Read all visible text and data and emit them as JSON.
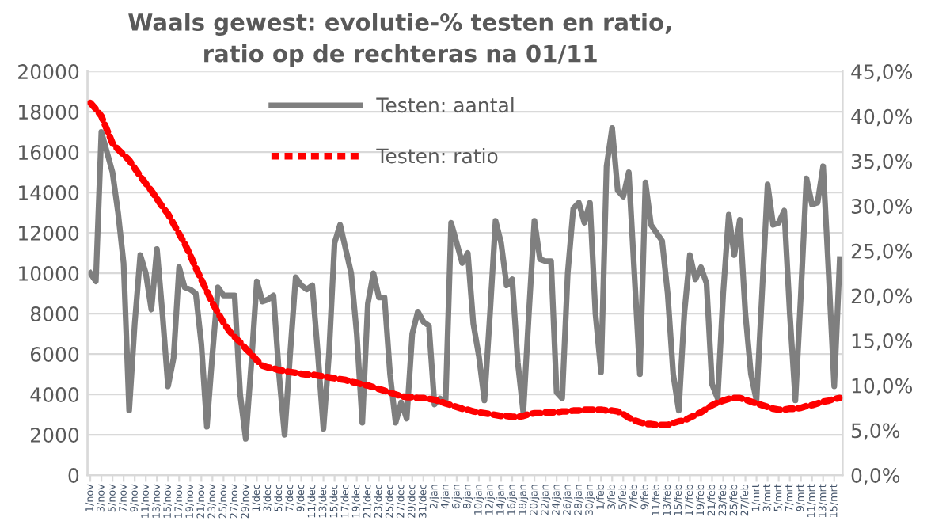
{
  "chart_data": {
    "type": "line",
    "title": "Waals gewest: evolutie-% testen en ratio,\nratio op de rechteras na 01/11",
    "categories": [
      "1/nov",
      null,
      "3/nov",
      null,
      "5/nov",
      null,
      "7/nov",
      null,
      "9/nov",
      null,
      "11/nov",
      null,
      "13/nov",
      null,
      "15/nov",
      null,
      "17/nov",
      null,
      "19/nov",
      null,
      "21/nov",
      null,
      "23/nov",
      null,
      "25/nov",
      null,
      "27/nov",
      null,
      "29/nov",
      null,
      "1/dec",
      null,
      "3/dec",
      null,
      "5/dec",
      null,
      "7/dec",
      null,
      "9/dec",
      null,
      "11/dec",
      null,
      "13/dec",
      null,
      "15/dec",
      null,
      "17/dec",
      null,
      "19/dec",
      null,
      "21/dec",
      null,
      "23/dec",
      null,
      "25/dec",
      null,
      "27/dec",
      null,
      "29/dec",
      null,
      "31/dec",
      null,
      "2/jan",
      null,
      "4/jan",
      null,
      "6/jan",
      null,
      "8/jan",
      null,
      "10/jan",
      null,
      "12/jan",
      null,
      "14/jan",
      null,
      "16/jan",
      null,
      "18/jan",
      null,
      "20/jan",
      null,
      "22/jan",
      null,
      "24/jan",
      null,
      "26/jan",
      null,
      "28/jan",
      null,
      "30/jan",
      null,
      "1/feb",
      null,
      "3/feb",
      null,
      "5/feb",
      null,
      "7/feb",
      null,
      "9/feb",
      null,
      "11/feb",
      null,
      "13/feb",
      null,
      "15/feb",
      null,
      "17/feb",
      null,
      "19/feb",
      null,
      "21/feb",
      null,
      "23/feb",
      null,
      "25/feb",
      null,
      "27/feb",
      null,
      "1/mrt",
      null,
      "3/mrt",
      null,
      "5/mrt",
      null,
      "7/mrt",
      null,
      "9/mrt",
      null,
      "11/mrt",
      null,
      "13/mrt",
      null,
      "15/mrt",
      null
    ],
    "series": [
      {
        "name": "Testen: aantal",
        "color": "#7f7f7f",
        "line_style": "solid",
        "values": [
          10000,
          9600,
          17000,
          16000,
          15000,
          13000,
          10500,
          3200,
          7500,
          10900,
          10000,
          8200,
          11200,
          8000,
          4400,
          5800,
          10300,
          9300,
          9200,
          9000,
          6500,
          2400,
          6000,
          9300,
          8900,
          8900,
          8900,
          4000,
          1800,
          5500,
          9600,
          8600,
          8700,
          8900,
          5000,
          2000,
          6000,
          9800,
          9400,
          9200,
          9400,
          6000,
          2300,
          6000,
          11500,
          12400,
          11200,
          10000,
          7000,
          2600,
          8500,
          10000,
          8800,
          8800,
          5000,
          2600,
          3600,
          2800,
          7000,
          8100,
          7600,
          7400,
          3500,
          3800,
          3600,
          12500,
          11500,
          10500,
          11000,
          7500,
          5900,
          3700,
          8000,
          12600,
          11500,
          9400,
          9700,
          5600,
          3100,
          8000,
          12600,
          10700,
          10600,
          10600,
          4100,
          3800,
          10000,
          13200,
          13500,
          12500,
          13500,
          8000,
          5100,
          15300,
          17200,
          14100,
          13800,
          15000,
          10000,
          5000,
          14500,
          12400,
          12000,
          11600,
          9000,
          5000,
          3200,
          8000,
          10900,
          9700,
          10300,
          9500,
          4500,
          3800,
          9000,
          12900,
          10900,
          12650,
          8000,
          5000,
          3700,
          9000,
          14400,
          12400,
          12500,
          13100,
          8000,
          3700,
          9000,
          14700,
          13400,
          13500,
          15300,
          10000,
          4400,
          10700
        ]
      },
      {
        "name": "Testen: ratio",
        "color": "#ff0000",
        "line_style": "dashed",
        "axis": "y2",
        "values": [
          41.5,
          40.8,
          40.0,
          38.5,
          37.0,
          36.3,
          35.7,
          35.1,
          34.2,
          33.3,
          32.5,
          31.7,
          30.8,
          29.9,
          29.1,
          28.0,
          26.9,
          25.8,
          24.5,
          23.1,
          21.8,
          20.5,
          19.2,
          18.1,
          17.0,
          16.1,
          15.4,
          14.8,
          14.1,
          13.5,
          12.8,
          12.2,
          12.0,
          11.9,
          11.7,
          11.6,
          11.5,
          11.4,
          11.3,
          11.2,
          11.2,
          11.1,
          11.0,
          10.9,
          10.8,
          10.7,
          10.6,
          10.4,
          10.3,
          10.1,
          10.0,
          9.8,
          9.6,
          9.4,
          9.2,
          9.0,
          8.8,
          8.7,
          8.7,
          8.6,
          8.6,
          8.5,
          8.4,
          8.2,
          8.0,
          7.8,
          7.6,
          7.4,
          7.3,
          7.1,
          7.0,
          6.9,
          6.8,
          6.7,
          6.6,
          6.6,
          6.5,
          6.5,
          6.6,
          6.8,
          6.9,
          6.9,
          7.0,
          7.0,
          7.0,
          7.1,
          7.1,
          7.2,
          7.2,
          7.3,
          7.3,
          7.3,
          7.3,
          7.2,
          7.2,
          7.1,
          6.8,
          6.4,
          6.1,
          5.9,
          5.7,
          5.7,
          5.6,
          5.6,
          5.6,
          5.8,
          6.0,
          6.1,
          6.4,
          6.7,
          7.0,
          7.4,
          7.8,
          8.1,
          8.3,
          8.5,
          8.6,
          8.6,
          8.4,
          8.2,
          8.0,
          7.8,
          7.6,
          7.4,
          7.3,
          7.3,
          7.4,
          7.4,
          7.5,
          7.7,
          7.8,
          8.0,
          8.2,
          8.3,
          8.5,
          8.6
        ]
      }
    ],
    "ylim": [
      0,
      20000
    ],
    "yticks": [
      0,
      2000,
      4000,
      6000,
      8000,
      10000,
      12000,
      14000,
      16000,
      18000,
      20000
    ],
    "y2lim": [
      0,
      45
    ],
    "y2ticks": [
      {
        "value": 0,
        "label": "0,0%"
      },
      {
        "value": 5,
        "label": "5,0%"
      },
      {
        "value": 10,
        "label": "10,0%"
      },
      {
        "value": 15,
        "label": "15,0%"
      },
      {
        "value": 20,
        "label": "20,0%"
      },
      {
        "value": 25,
        "label": "25,0%"
      },
      {
        "value": 30,
        "label": "30,0%"
      },
      {
        "value": 35,
        "label": "35,0%"
      },
      {
        "value": 40,
        "label": "40,0%"
      },
      {
        "value": 45,
        "label": "45,0%"
      }
    ],
    "grid": "y",
    "legend": "top"
  }
}
